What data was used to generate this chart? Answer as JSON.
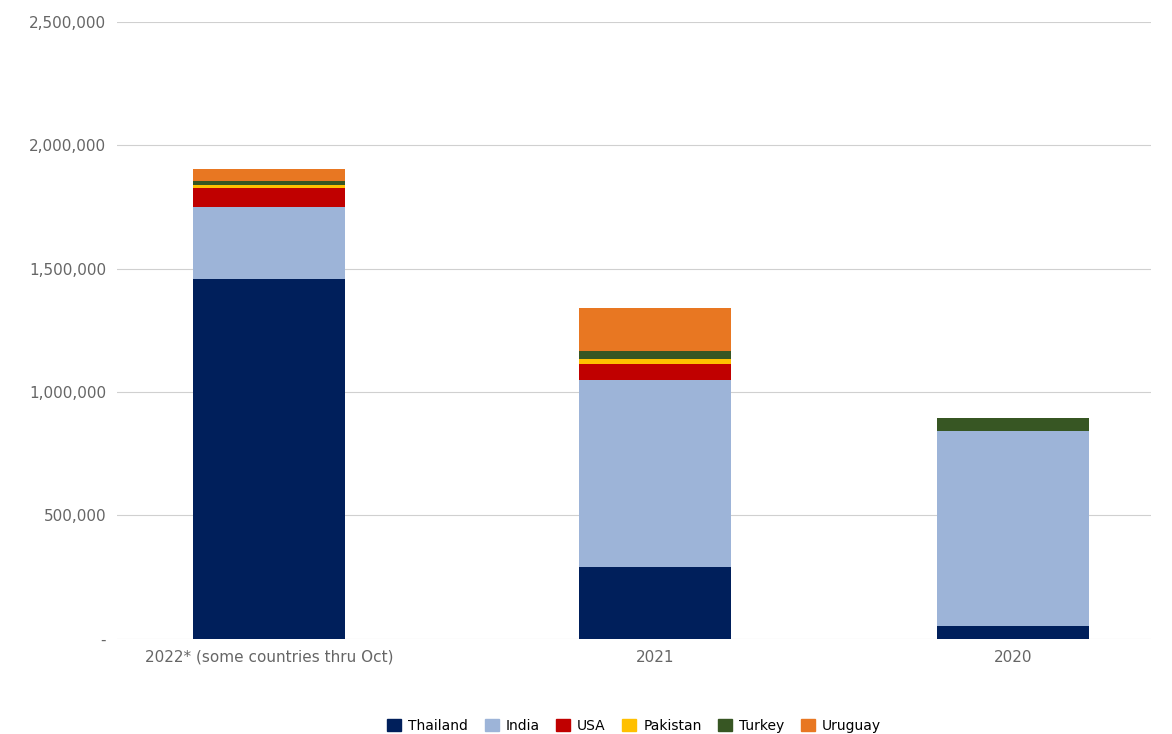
{
  "categories": [
    "2022* (some countries thru Oct)",
    "2021",
    "2020"
  ],
  "series": {
    "Thailand": [
      1460000,
      290000,
      50000
    ],
    "India": [
      290000,
      760000,
      790000
    ],
    "USA": [
      75000,
      65000,
      0
    ],
    "Pakistan": [
      15000,
      20000,
      0
    ],
    "Turkey": [
      15000,
      30000,
      55000
    ],
    "Uruguay": [
      50000,
      175000,
      0
    ]
  },
  "colors": {
    "Thailand": "#001F5B",
    "India": "#9DB4D8",
    "USA": "#C00000",
    "Pakistan": "#FFC000",
    "Turkey": "#375623",
    "Uruguay": "#E87722"
  },
  "ylim": [
    0,
    2500000
  ],
  "yticks": [
    0,
    500000,
    1000000,
    1500000,
    2000000,
    2500000
  ],
  "ytick_labels": [
    "-",
    "500,000",
    "1,000,000",
    "1,500,000",
    "2,000,000",
    "2,500,000"
  ],
  "background_color": "#ffffff",
  "grid_color": "#d0d0d0",
  "bar_width": 0.55,
  "x_positions": [
    0,
    1.4,
    2.7
  ]
}
